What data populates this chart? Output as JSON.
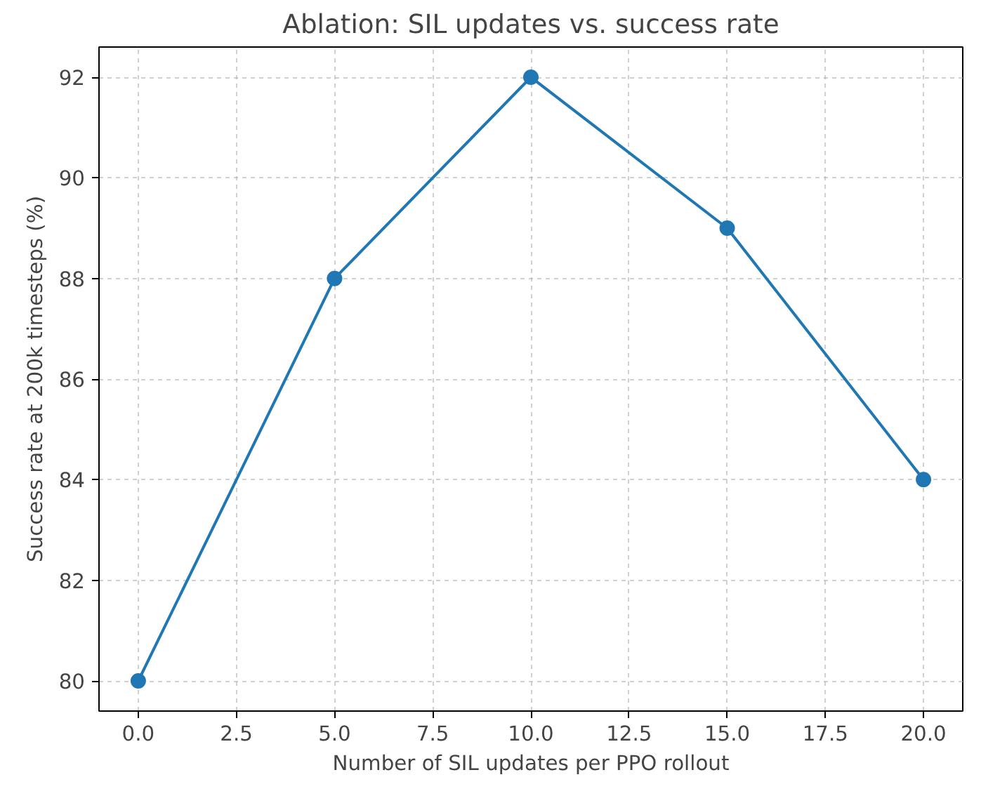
{
  "chart_data": {
    "type": "line",
    "title": "Ablation: SIL updates vs. success rate",
    "xlabel": "Number of SIL updates per PPO rollout",
    "ylabel": "Success rate at 200k timesteps (%)",
    "x": [
      0,
      5,
      10,
      15,
      20
    ],
    "series": [
      {
        "color": "#1f77b4",
        "values": [
          80,
          88,
          92,
          89,
          84
        ]
      }
    ],
    "xlim": [
      -1,
      21
    ],
    "ylim": [
      79.4,
      92.6
    ],
    "xticks": [
      {
        "value": 0,
        "label": "0.0"
      },
      {
        "value": 2.5,
        "label": "2.5"
      },
      {
        "value": 5,
        "label": "5.0"
      },
      {
        "value": 7.5,
        "label": "7.5"
      },
      {
        "value": 10,
        "label": "10.0"
      },
      {
        "value": 12.5,
        "label": "12.5"
      },
      {
        "value": 15,
        "label": "15.0"
      },
      {
        "value": 17.5,
        "label": "17.5"
      },
      {
        "value": 20,
        "label": "20.0"
      }
    ],
    "yticks": [
      80,
      82,
      84,
      86,
      88,
      90,
      92
    ],
    "grid": true,
    "marker": "circle",
    "line_style": "solid"
  }
}
